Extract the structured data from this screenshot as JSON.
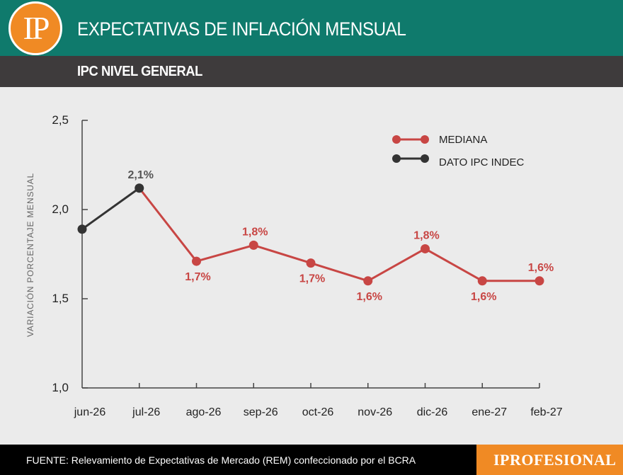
{
  "header": {
    "logo_text": "IP",
    "title": "EXPECTATIVAS DE INFLACIÓN MENSUAL"
  },
  "subheader": {
    "title": "IPC NIVEL GENERAL"
  },
  "footer": {
    "source": "FUENTE: Relevamiento de Expectativas de Mercado (REM) confeccionado por el BCRA",
    "brand": "IPROFESIONAL"
  },
  "colors": {
    "mediana": "#c84644",
    "dato": "#333333",
    "header_bg": "#0f7a6c",
    "accent": "#f08a24"
  },
  "chart_data": {
    "type": "line",
    "categories": [
      "jun-26",
      "jul-26",
      "ago-26",
      "sep-26",
      "oct-26",
      "nov-26",
      "dic-26",
      "ene-27",
      "feb-27"
    ],
    "ylabel": "VARIACIÓN PORCENTAJE MENSUAL",
    "ylim": [
      1.0,
      2.5
    ],
    "yticks": [
      "1,0",
      "1,5",
      "2,0",
      "2,5"
    ],
    "grid": false,
    "legend_position": "top-right",
    "series": [
      {
        "name": "DATO IPC INDEC",
        "values": [
          1.89,
          2.12,
          null,
          null,
          null,
          null,
          null,
          null,
          null
        ],
        "labels": [
          null,
          "2,1%",
          null,
          null,
          null,
          null,
          null,
          null,
          null
        ]
      },
      {
        "name": "MEDIANA",
        "values": [
          null,
          2.12,
          1.71,
          1.8,
          1.7,
          1.6,
          1.78,
          1.6,
          1.6
        ],
        "labels": [
          null,
          null,
          "1,7%",
          "1,8%",
          "1,7%",
          "1,6%",
          "1,8%",
          "1,6%",
          "1,6%"
        ]
      }
    ]
  }
}
